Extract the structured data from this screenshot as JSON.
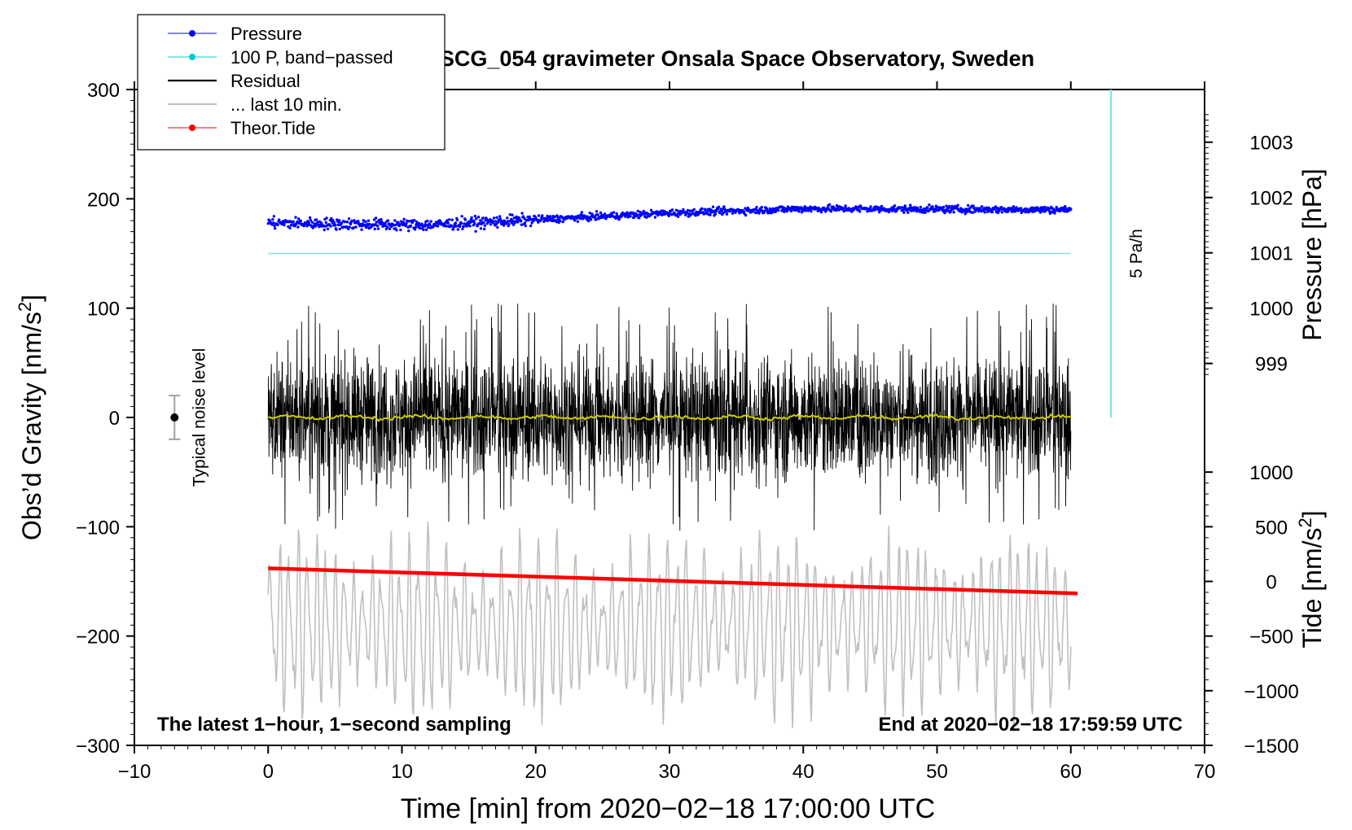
{
  "chart_data": {
    "type": "line",
    "title": "SCG_054 gravimeter Onsala Space Observatory, Sweden",
    "xlabel": "Time [min] from 2020−02−18 17:00:00 UTC",
    "ylabel_left": "Obs’d Gravity [nm/s",
    "ylabel_left_sup": "2",
    "ylabel_left_close": "]",
    "ylabel_right_pressure": "Pressure [hPa]",
    "ylabel_right_tide": "Tide [nm/s",
    "ylabel_right_tide_sup": "2",
    "ylabel_right_tide_close": "]",
    "xlim": [
      -10,
      70
    ],
    "ylim_left": [
      -300,
      300
    ],
    "x_ticks": [
      {
        "v": -10,
        "label": "−10"
      },
      {
        "v": 0,
        "label": "0"
      },
      {
        "v": 10,
        "label": "10"
      },
      {
        "v": 20,
        "label": "20"
      },
      {
        "v": 30,
        "label": "30"
      },
      {
        "v": 40,
        "label": "40"
      },
      {
        "v": 50,
        "label": "50"
      },
      {
        "v": 60,
        "label": "60"
      },
      {
        "v": 70,
        "label": "70"
      }
    ],
    "y_ticks_left": [
      {
        "v": 300,
        "label": "300"
      },
      {
        "v": 200,
        "label": "200"
      },
      {
        "v": 100,
        "label": "100"
      },
      {
        "v": 0,
        "label": "0"
      },
      {
        "v": -100,
        "label": "−100"
      },
      {
        "v": -200,
        "label": "−200"
      },
      {
        "v": -300,
        "label": "−300"
      }
    ],
    "pressure_axis": {
      "ticks": [
        {
          "v": 1003,
          "label": "1003"
        },
        {
          "v": 1002,
          "label": "1002"
        },
        {
          "v": 1001,
          "label": "1001"
        },
        {
          "v": 1000,
          "label": "1000"
        },
        {
          "v": 999,
          "label": "999"
        }
      ],
      "gravity_at_1000": 100,
      "gravity_per_hPa": 50.6
    },
    "tide_axis": {
      "ticks": [
        {
          "v": 1000,
          "label": "1000"
        },
        {
          "v": 500,
          "label": "500"
        },
        {
          "v": 0,
          "label": "0"
        },
        {
          "v": -500,
          "label": "−500"
        },
        {
          "v": -1000,
          "label": "−1000"
        },
        {
          "v": -1500,
          "label": "−1500"
        }
      ],
      "gravity_at_0": -150,
      "gravity_per_unit": 0.1
    },
    "legend": {
      "placement": "top-left",
      "entries": [
        {
          "label": "Pressure",
          "color": "#0000ff",
          "marker": true
        },
        {
          "label": "100 P, band−passed",
          "color": "#00cccc",
          "marker": true
        },
        {
          "label": "Residual",
          "color": "#000000",
          "marker": false
        },
        {
          "label": "... last 10 min.",
          "color": "#c0c0c0",
          "marker": false
        },
        {
          "label": "Theor.Tide",
          "color": "#ff0000",
          "marker": true
        }
      ]
    },
    "series": [
      {
        "name": "Pressure",
        "color": "#0000ff",
        "x_range": [
          0,
          60
        ],
        "start_gravity": 178,
        "end_gravity": 190,
        "mid_points": [
          {
            "x": 12,
            "y": 176
          },
          {
            "x": 30,
            "y": 187
          },
          {
            "x": 40,
            "y": 191
          }
        ]
      },
      {
        "name": "100 P, band−passed",
        "color": "#80e0e0",
        "x_range": [
          0,
          60
        ],
        "value": 150
      },
      {
        "name": "Residual",
        "color": "#000000",
        "x_range": [
          0,
          60
        ],
        "center": 0,
        "amplitude_typical": 50,
        "amplitude_max": 105
      },
      {
        "name": "Residual (smoothed)",
        "color": "#cccc00",
        "x_range": [
          0,
          60
        ],
        "center": 0
      },
      {
        "name": "... last 10 min.",
        "color": "#c0c0c0",
        "x_range": [
          0,
          60
        ],
        "center": -190,
        "amplitude_max": 100
      },
      {
        "name": "Theor.Tide",
        "color": "#ff0000",
        "x_range": [
          0,
          60.5
        ],
        "start_gravity": -138,
        "end_gravity": -161
      }
    ],
    "noise_level": {
      "label": "Typical noise level",
      "x": -7,
      "center": 0,
      "half_range": 20
    },
    "rate_bar": {
      "label": "5 Pa/h",
      "x": 63,
      "y_top": 300,
      "y_bottom": 0
    },
    "annotations": {
      "bottom_left": "The latest 1−hour, 1−second sampling",
      "bottom_right": "End at 2020−02−18 17:59:59 UTC"
    }
  }
}
